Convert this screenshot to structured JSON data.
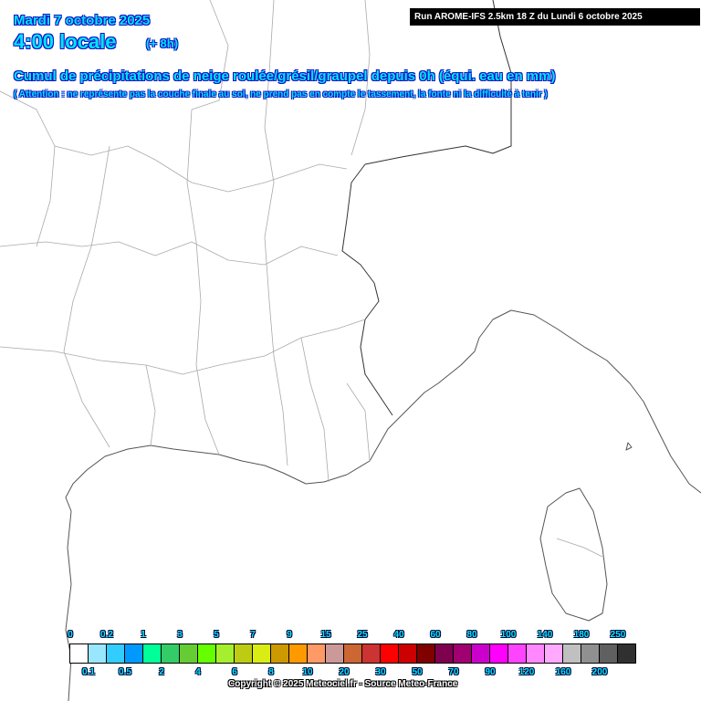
{
  "header": {
    "date": "Mardi 7 octobre 2025",
    "hour": "4:00 locale",
    "offset": "(+ 8h)",
    "title": "Cumul de précipitations de neige roulée/grésil/graupel depuis 0h (équi. eau en mm)",
    "warning": "( Attention : ne représente pas la couche finale au sol, ne prend pas en compte le tassement, la fonte ni la difficulté à tenir )"
  },
  "run_info": "Run AROME-IFS 2.5km 18 Z du Lundi 6 octobre 2025",
  "legend": {
    "colors": [
      "#ffffff",
      "#99e6ff",
      "#33ccff",
      "#0099ff",
      "#00ff99",
      "#33cc66",
      "#66cc33",
      "#66ff00",
      "#a6ef2f",
      "#bdcc12",
      "#d9ed14",
      "#cc9900",
      "#ff9900",
      "#ff9966",
      "#cc9999",
      "#cc6633",
      "#cc3333",
      "#ff0000",
      "#cc0000",
      "#800000",
      "#800050",
      "#a00070",
      "#cc00cc",
      "#ff00ff",
      "#ff44ff",
      "#ff88ff",
      "#ffaaff",
      "#c0c0c0",
      "#909090",
      "#606060",
      "#303030"
    ],
    "top_labels": [
      "0",
      "0.2",
      "1",
      "3",
      "5",
      "7",
      "9",
      "15",
      "25",
      "40",
      "60",
      "80",
      "100",
      "140",
      "180",
      "250"
    ],
    "bottom_labels": [
      "0.1",
      "0.5",
      "2",
      "4",
      "6",
      "8",
      "10",
      "20",
      "30",
      "50",
      "70",
      "90",
      "120",
      "160",
      "200"
    ]
  },
  "copyright": "Copyright © 2025 Meteociel.fr - Source Meteo-France"
}
